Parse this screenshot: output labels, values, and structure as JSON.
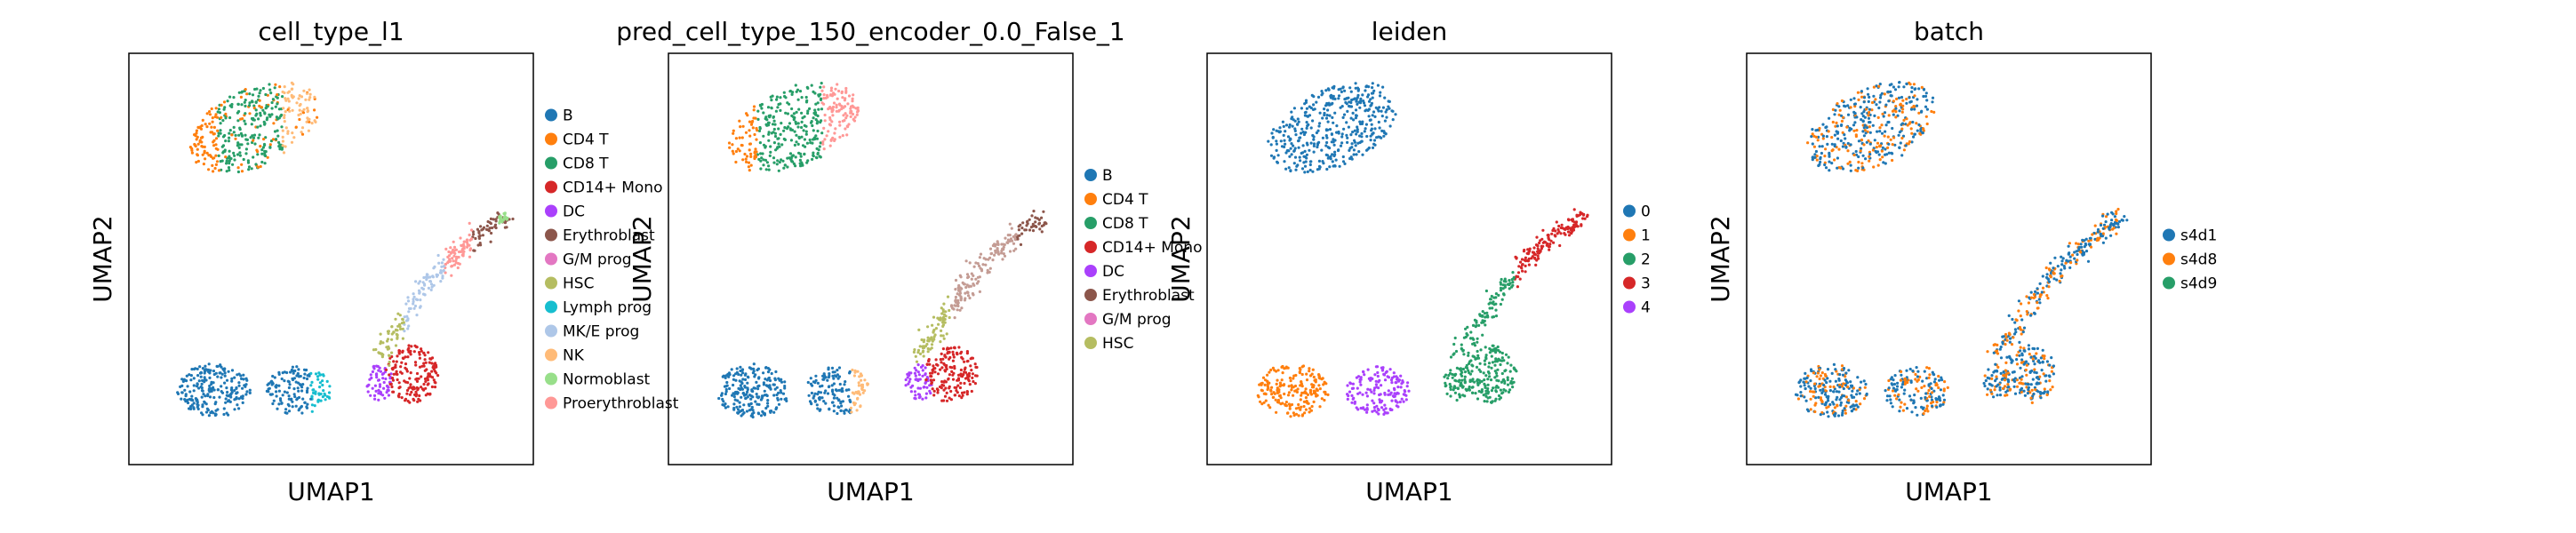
{
  "chart_data": [
    {
      "type": "scatter",
      "title": "cell_type_l1",
      "xlabel": "UMAP1",
      "ylabel": "UMAP2",
      "grid": false,
      "legend_position": "right",
      "legend": [
        "B",
        "CD4 T",
        "CD8 T",
        "CD14+ Mono",
        "DC",
        "Erythroblast",
        "G/M prog",
        "HSC",
        "Lymph prog",
        "MK/E prog",
        "NK",
        "Normoblast",
        "Proerythroblast"
      ]
    },
    {
      "type": "scatter",
      "title": "pred_cell_type_150_encoder_0.0_False_1",
      "xlabel": "UMAP1",
      "ylabel": "UMAP2",
      "grid": false,
      "legend_position": "right",
      "legend": [
        "B",
        "CD4 T",
        "CD8 T",
        "CD14+ Mono",
        "DC",
        "Erythroblast",
        "G/M prog",
        "HSC"
      ]
    },
    {
      "type": "scatter",
      "title": "leiden",
      "xlabel": "UMAP1",
      "ylabel": "UMAP2",
      "grid": false,
      "legend_position": "right",
      "legend": [
        "0",
        "1",
        "2",
        "3",
        "4"
      ]
    },
    {
      "type": "scatter",
      "title": "batch",
      "xlabel": "UMAP1",
      "ylabel": "UMAP2",
      "grid": false,
      "legend_position": "right",
      "legend": [
        "s4d1",
        "s4d8",
        "s4d9"
      ]
    }
  ],
  "palette": {
    "B": "#1f77b4",
    "CD4 T": "#ff7f0e",
    "CD8 T": "#279e68",
    "CD14+ Mono": "#d62728",
    "DC": "#aa40fc",
    "Erythroblast": "#8c564b",
    "G/M prog": "#e377c2",
    "HSC": "#b5bd61",
    "Lymph prog": "#17becf",
    "MK/E prog": "#aec7e8",
    "NK": "#ffbb78",
    "Normoblast": "#98df8a",
    "Proerythroblast": "#ff9896",
    "0": "#1f77b4",
    "1": "#ff7f0e",
    "2": "#279e68",
    "3": "#d62728",
    "4": "#aa40fc",
    "s4d1": "#1f77b4",
    "s4d8": "#ff7f0e",
    "s4d9": "#279e68"
  }
}
